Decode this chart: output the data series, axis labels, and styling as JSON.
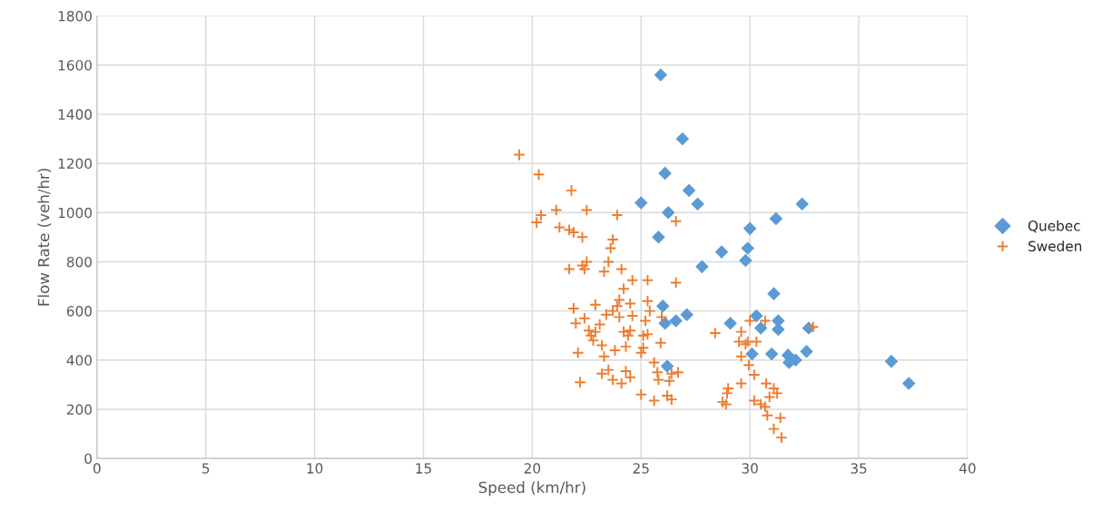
{
  "chart_data": {
    "type": "scatter",
    "xlabel": "Speed (km/hr)",
    "ylabel": "Flow Rate (veh/hr)",
    "xlim": [
      0,
      40
    ],
    "xticks": [
      0,
      5,
      10,
      15,
      20,
      25,
      30,
      35,
      40
    ],
    "ylim": [
      0,
      1800
    ],
    "yticks": [
      0,
      200,
      400,
      600,
      800,
      1000,
      1200,
      1400,
      1600,
      1800
    ],
    "grid": true,
    "legend": "right",
    "series": [
      {
        "name": "Quebec",
        "color": "#5b9bd5",
        "marker": "diamond",
        "x": [
          25.9,
          26.9,
          26.1,
          27.2,
          25.0,
          27.6,
          32.4,
          26.25,
          31.2,
          30.0,
          25.8,
          28.7,
          29.9,
          29.8,
          27.8,
          31.1,
          26.0,
          27.1,
          26.1,
          26.6,
          29.1,
          30.3,
          30.5,
          31.3,
          31.3,
          32.7,
          30.1,
          31.0,
          31.75,
          32.1,
          31.8,
          32.6,
          26.2,
          36.5,
          37.3
        ],
        "values": [
          1560,
          1300,
          1160,
          1090,
          1040,
          1035,
          1035,
          1000,
          975,
          935,
          900,
          840,
          855,
          805,
          780,
          670,
          620,
          585,
          550,
          560,
          550,
          580,
          530,
          560,
          525,
          530,
          425,
          425,
          420,
          400,
          390,
          435,
          375,
          395,
          305
        ]
      },
      {
        "name": "Sweden",
        "color": "#ed7d31",
        "marker": "cross",
        "x": [
          19.4,
          20.3,
          20.4,
          20.2,
          21.8,
          21.1,
          22.5,
          21.25,
          21.7,
          21.9,
          22.3,
          23.9,
          23.7,
          23.6,
          21.7,
          22.3,
          22.4,
          22.5,
          23.5,
          24.1,
          24.6,
          25.3,
          23.3,
          26.6,
          26.6,
          21.9,
          22.9,
          23.9,
          24.0,
          24.2,
          24.5,
          25.3,
          25.95,
          25.4,
          25.2,
          24.6,
          24.0,
          23.4,
          23.7,
          22.0,
          22.4,
          23.1,
          22.9,
          22.7,
          22.6,
          22.8,
          23.2,
          22.1,
          23.3,
          23.8,
          24.3,
          24.4,
          24.5,
          24.2,
          25.1,
          25.0,
          25.1,
          25.3,
          25.9,
          25.6,
          24.3,
          24.5,
          23.7,
          24.1,
          23.5,
          23.2,
          22.2,
          25.75,
          25.8,
          26.3,
          26.4,
          26.7,
          26.2,
          26.4,
          25.6,
          25.0,
          28.4,
          30.0,
          30.7,
          29.6,
          29.5,
          29.9,
          30.3,
          29.8,
          29.6,
          29.95,
          30.2,
          29.6,
          29.0,
          28.95,
          28.75,
          28.9,
          30.75,
          31.1,
          31.25,
          30.9,
          30.2,
          30.5,
          30.7,
          30.8,
          31.4,
          31.1,
          31.45,
          32.9
        ],
        "values": [
          1235,
          1155,
          990,
          960,
          1090,
          1010,
          1010,
          940,
          930,
          920,
          900,
          990,
          890,
          855,
          770,
          785,
          770,
          800,
          800,
          770,
          725,
          725,
          760,
          965,
          715,
          610,
          625,
          620,
          645,
          690,
          630,
          640,
          575,
          600,
          560,
          580,
          575,
          585,
          600,
          550,
          570,
          545,
          515,
          500,
          520,
          480,
          460,
          430,
          415,
          440,
          455,
          500,
          520,
          515,
          500,
          430,
          450,
          505,
          470,
          390,
          355,
          330,
          320,
          305,
          360,
          345,
          310,
          350,
          320,
          315,
          345,
          350,
          255,
          240,
          235,
          260,
          510,
          560,
          560,
          515,
          475,
          475,
          475,
          465,
          415,
          380,
          340,
          305,
          285,
          265,
          230,
          220,
          305,
          285,
          265,
          250,
          235,
          220,
          210,
          175,
          165,
          120,
          85,
          535
        ]
      }
    ]
  }
}
